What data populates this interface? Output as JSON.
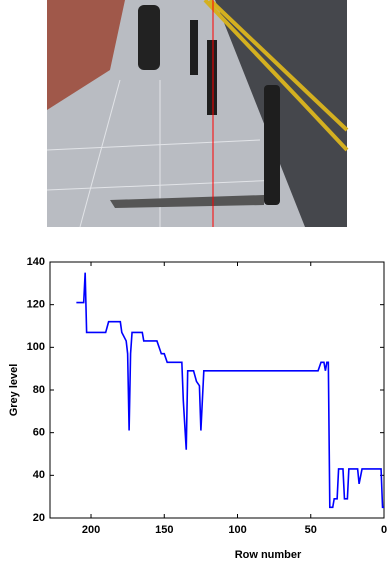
{
  "chart_data": {
    "type": "line",
    "x_label": "Row number",
    "y_label": "Grey level",
    "x": [
      210,
      205,
      204,
      203,
      190,
      188,
      180,
      179,
      176,
      175,
      174,
      173,
      172,
      165,
      164,
      155,
      152,
      150,
      148,
      138,
      137,
      135,
      134,
      130,
      128,
      126,
      125,
      123,
      45,
      43,
      41,
      40,
      39,
      38,
      37,
      35,
      34,
      32,
      31,
      28,
      27,
      25,
      24,
      18,
      17,
      15,
      2,
      1,
      0
    ],
    "values": [
      121,
      121,
      135,
      107,
      107,
      112,
      112,
      107,
      103,
      97,
      61,
      97,
      107,
      107,
      103,
      103,
      97,
      97,
      93,
      93,
      75,
      52,
      89,
      89,
      84,
      82,
      61,
      89,
      89,
      93,
      93,
      89,
      93,
      93,
      25,
      25,
      29,
      29,
      43,
      43,
      29,
      29,
      43,
      43,
      36,
      43,
      43,
      25,
      25
    ],
    "color": "#0000ff",
    "xlim": [
      228,
      0
    ],
    "xticks": [
      200,
      150,
      100,
      50,
      0
    ],
    "ylim": [
      20,
      140
    ],
    "yticks": [
      20,
      40,
      60,
      80,
      100,
      120,
      140
    ],
    "grid": false
  }
}
